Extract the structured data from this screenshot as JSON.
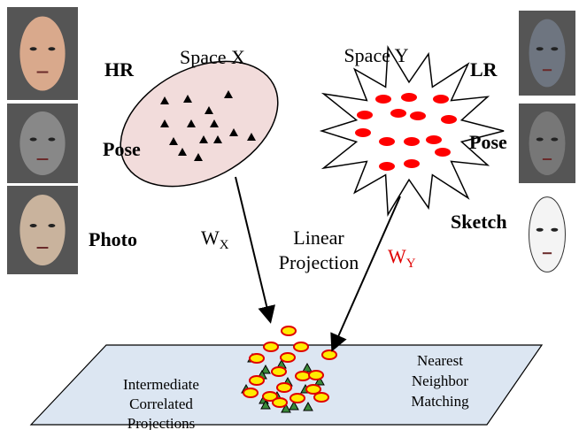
{
  "left_faces": [
    {
      "label": "HR"
    },
    {
      "label": "Pose"
    },
    {
      "label": "Photo"
    }
  ],
  "right_faces": [
    {
      "label": "LR"
    },
    {
      "label": "Pose"
    },
    {
      "label": "Sketch"
    }
  ],
  "space_x": {
    "label": "Space X"
  },
  "space_y": {
    "label": "Space Y"
  },
  "weight_x": {
    "symbol": "W",
    "subscript": "X"
  },
  "weight_y": {
    "symbol": "W",
    "subscript": "Y"
  },
  "projection_label": [
    "Linear",
    "Projection"
  ],
  "plane": {
    "left_text": [
      "Intermediate",
      "Correlated",
      "Projections"
    ],
    "right_text": [
      "Nearest",
      "Neighbor",
      "Matching"
    ]
  }
}
